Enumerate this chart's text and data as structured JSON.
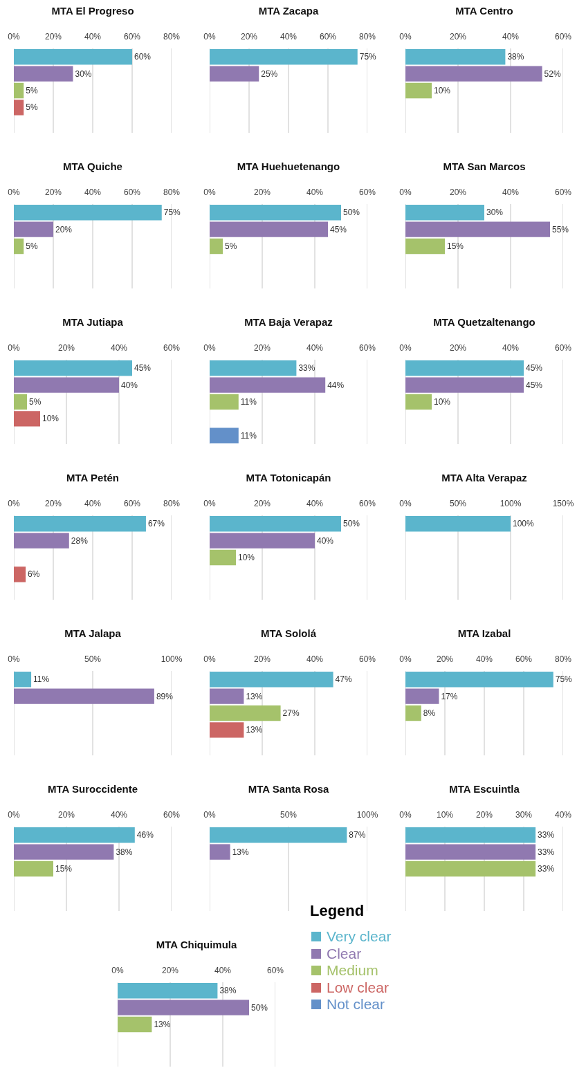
{
  "chart_data": [
    {
      "type": "bar",
      "orientation": "horizontal",
      "title": "MTA El Progreso",
      "categories": [
        null,
        null,
        null,
        null,
        null
      ],
      "values": [
        60,
        30,
        5,
        5,
        null
      ],
      "value_labels": [
        "60%",
        "30%",
        "5%",
        "5%",
        null
      ],
      "colors": [
        "#5bb5cc",
        "#9079b0",
        "#a5c26b",
        "#cc6664",
        "#6390c9"
      ],
      "xlim": [
        0,
        80
      ],
      "xticks": [
        {
          "value": 0,
          "label": "0%"
        },
        {
          "value": 20,
          "label": "20%"
        },
        {
          "value": 40,
          "label": "40%"
        },
        {
          "value": 60,
          "label": "60%"
        },
        {
          "value": 80,
          "label": "80%"
        }
      ],
      "grid": "x",
      "tick_labels": "x"
    },
    {
      "type": "bar",
      "orientation": "horizontal",
      "title": "MTA Zacapa",
      "categories": [
        null,
        null,
        null,
        null,
        null
      ],
      "values": [
        75,
        25,
        null,
        null,
        null
      ],
      "value_labels": [
        "75%",
        "25%",
        null,
        null,
        null
      ],
      "colors": [
        "#5bb5cc",
        "#9079b0",
        "#a5c26b",
        "#cc6664",
        "#6390c9"
      ],
      "xlim": [
        0,
        80
      ],
      "xticks": [
        {
          "value": 0,
          "label": "0%"
        },
        {
          "value": 20,
          "label": "20%"
        },
        {
          "value": 40,
          "label": "40%"
        },
        {
          "value": 60,
          "label": "60%"
        },
        {
          "value": 80,
          "label": "80%"
        }
      ],
      "grid": "x",
      "tick_labels": "x"
    },
    {
      "type": "bar",
      "orientation": "horizontal",
      "title": "MTA Centro",
      "categories": [
        null,
        null,
        null,
        null,
        null
      ],
      "values": [
        38,
        52,
        10,
        null,
        null
      ],
      "value_labels": [
        "38%",
        "52%",
        "10%",
        null,
        null
      ],
      "colors": [
        "#5bb5cc",
        "#9079b0",
        "#a5c26b",
        "#cc6664",
        "#6390c9"
      ],
      "xlim": [
        0,
        60
      ],
      "xticks": [
        {
          "value": 0,
          "label": "0%"
        },
        {
          "value": 20,
          "label": "20%"
        },
        {
          "value": 40,
          "label": "40%"
        },
        {
          "value": 60,
          "label": "60%"
        }
      ],
      "grid": "x",
      "tick_labels": "x"
    },
    {
      "type": "bar",
      "orientation": "horizontal",
      "title": "MTA Quiche",
      "categories": [
        null,
        null,
        null,
        null,
        null
      ],
      "values": [
        75,
        20,
        5,
        null,
        null
      ],
      "value_labels": [
        "75%",
        "20%",
        "5%",
        null,
        null
      ],
      "colors": [
        "#5bb5cc",
        "#9079b0",
        "#a5c26b",
        "#cc6664",
        "#6390c9"
      ],
      "xlim": [
        0,
        80
      ],
      "xticks": [
        {
          "value": 0,
          "label": "0%"
        },
        {
          "value": 20,
          "label": "20%"
        },
        {
          "value": 40,
          "label": "40%"
        },
        {
          "value": 60,
          "label": "60%"
        },
        {
          "value": 80,
          "label": "80%"
        }
      ],
      "grid": "x",
      "tick_labels": "x"
    },
    {
      "type": "bar",
      "orientation": "horizontal",
      "title": "MTA Huehuetenango",
      "categories": [
        null,
        null,
        null,
        null,
        null
      ],
      "values": [
        50,
        45,
        5,
        null,
        null
      ],
      "value_labels": [
        "50%",
        "45%",
        "5%",
        null,
        null
      ],
      "colors": [
        "#5bb5cc",
        "#9079b0",
        "#a5c26b",
        "#cc6664",
        "#6390c9"
      ],
      "xlim": [
        0,
        60
      ],
      "xticks": [
        {
          "value": 0,
          "label": "0%"
        },
        {
          "value": 20,
          "label": "20%"
        },
        {
          "value": 40,
          "label": "40%"
        },
        {
          "value": 60,
          "label": "60%"
        }
      ],
      "grid": "x",
      "tick_labels": "x"
    },
    {
      "type": "bar",
      "orientation": "horizontal",
      "title": "MTA San Marcos",
      "categories": [
        null,
        null,
        null,
        null,
        null
      ],
      "values": [
        30,
        55,
        15,
        null,
        null
      ],
      "value_labels": [
        "30%",
        "55%",
        "15%",
        null,
        null
      ],
      "colors": [
        "#5bb5cc",
        "#9079b0",
        "#a5c26b",
        "#cc6664",
        "#6390c9"
      ],
      "xlim": [
        0,
        60
      ],
      "xticks": [
        {
          "value": 0,
          "label": "0%"
        },
        {
          "value": 20,
          "label": "20%"
        },
        {
          "value": 40,
          "label": "40%"
        },
        {
          "value": 60,
          "label": "60%"
        }
      ],
      "grid": "x",
      "tick_labels": "x"
    },
    {
      "type": "bar",
      "orientation": "horizontal",
      "title": "MTA Jutiapa",
      "categories": [
        null,
        null,
        null,
        null,
        null
      ],
      "values": [
        45,
        40,
        5,
        10,
        null
      ],
      "value_labels": [
        "45%",
        "40%",
        "5%",
        "10%",
        null
      ],
      "colors": [
        "#5bb5cc",
        "#9079b0",
        "#a5c26b",
        "#cc6664",
        "#6390c9"
      ],
      "xlim": [
        0,
        60
      ],
      "xticks": [
        {
          "value": 0,
          "label": "0%"
        },
        {
          "value": 20,
          "label": "20%"
        },
        {
          "value": 40,
          "label": "40%"
        },
        {
          "value": 60,
          "label": "60%"
        }
      ],
      "grid": "x",
      "tick_labels": "x"
    },
    {
      "type": "bar",
      "orientation": "horizontal",
      "title": "MTA Baja Verapaz",
      "categories": [
        null,
        null,
        null,
        null,
        null
      ],
      "values": [
        33,
        44,
        11,
        null,
        11
      ],
      "value_labels": [
        "33%",
        "44%",
        "11%",
        null,
        "11%"
      ],
      "colors": [
        "#5bb5cc",
        "#9079b0",
        "#a5c26b",
        "#cc6664",
        "#6390c9"
      ],
      "xlim": [
        0,
        60
      ],
      "xticks": [
        {
          "value": 0,
          "label": "0%"
        },
        {
          "value": 20,
          "label": "20%"
        },
        {
          "value": 40,
          "label": "40%"
        },
        {
          "value": 60,
          "label": "60%"
        }
      ],
      "grid": "x",
      "tick_labels": "x"
    },
    {
      "type": "bar",
      "orientation": "horizontal",
      "title": "MTA Quetzaltenango",
      "categories": [
        null,
        null,
        null,
        null,
        null
      ],
      "values": [
        45,
        45,
        10,
        null,
        null
      ],
      "value_labels": [
        "45%",
        "45%",
        "10%",
        null,
        null
      ],
      "colors": [
        "#5bb5cc",
        "#9079b0",
        "#a5c26b",
        "#cc6664",
        "#6390c9"
      ],
      "xlim": [
        0,
        60
      ],
      "xticks": [
        {
          "value": 0,
          "label": "0%"
        },
        {
          "value": 20,
          "label": "20%"
        },
        {
          "value": 40,
          "label": "40%"
        },
        {
          "value": 60,
          "label": "60%"
        }
      ],
      "grid": "x",
      "tick_labels": "x"
    },
    {
      "type": "bar",
      "orientation": "horizontal",
      "title": "MTA Petén",
      "categories": [
        null,
        null,
        null,
        null,
        null
      ],
      "values": [
        67,
        28,
        null,
        6,
        null
      ],
      "value_labels": [
        "67%",
        "28%",
        null,
        "6%",
        null
      ],
      "colors": [
        "#5bb5cc",
        "#9079b0",
        "#a5c26b",
        "#cc6664",
        "#6390c9"
      ],
      "xlim": [
        0,
        80
      ],
      "xticks": [
        {
          "value": 0,
          "label": "0%"
        },
        {
          "value": 20,
          "label": "20%"
        },
        {
          "value": 40,
          "label": "40%"
        },
        {
          "value": 60,
          "label": "60%"
        },
        {
          "value": 80,
          "label": "80%"
        }
      ],
      "grid": "x",
      "tick_labels": "x"
    },
    {
      "type": "bar",
      "orientation": "horizontal",
      "title": "MTA Totonicapán",
      "categories": [
        null,
        null,
        null,
        null,
        null
      ],
      "values": [
        50,
        40,
        10,
        null,
        null
      ],
      "value_labels": [
        "50%",
        "40%",
        "10%",
        null,
        null
      ],
      "colors": [
        "#5bb5cc",
        "#9079b0",
        "#a5c26b",
        "#cc6664",
        "#6390c9"
      ],
      "xlim": [
        0,
        60
      ],
      "xticks": [
        {
          "value": 0,
          "label": "0%"
        },
        {
          "value": 20,
          "label": "20%"
        },
        {
          "value": 40,
          "label": "40%"
        },
        {
          "value": 60,
          "label": "60%"
        }
      ],
      "grid": "x",
      "tick_labels": "x"
    },
    {
      "type": "bar",
      "orientation": "horizontal",
      "title": "MTA Alta Verapaz",
      "categories": [
        null,
        null,
        null,
        null,
        null
      ],
      "values": [
        100,
        null,
        null,
        null,
        null
      ],
      "value_labels": [
        "100%",
        null,
        null,
        null,
        null
      ],
      "colors": [
        "#5bb5cc",
        "#9079b0",
        "#a5c26b",
        "#cc6664",
        "#6390c9"
      ],
      "xlim": [
        0,
        150
      ],
      "xticks": [
        {
          "value": 0,
          "label": "0%"
        },
        {
          "value": 50,
          "label": "50%"
        },
        {
          "value": 100,
          "label": "100%"
        },
        {
          "value": 150,
          "label": "150%"
        }
      ],
      "grid": "x",
      "tick_labels": "x"
    },
    {
      "type": "bar",
      "orientation": "horizontal",
      "title": "MTA Jalapa",
      "categories": [
        null,
        null,
        null,
        null,
        null
      ],
      "values": [
        11,
        89,
        null,
        null,
        null
      ],
      "value_labels": [
        "11%",
        "89%",
        null,
        null,
        null
      ],
      "colors": [
        "#5bb5cc",
        "#9079b0",
        "#a5c26b",
        "#cc6664",
        "#6390c9"
      ],
      "xlim": [
        0,
        100
      ],
      "xticks": [
        {
          "value": 0,
          "label": "0%"
        },
        {
          "value": 50,
          "label": "50%"
        },
        {
          "value": 100,
          "label": "100%"
        }
      ],
      "grid": "x",
      "tick_labels": "x"
    },
    {
      "type": "bar",
      "orientation": "horizontal",
      "title": "MTA Sololá",
      "categories": [
        null,
        null,
        null,
        null,
        null
      ],
      "values": [
        47,
        13,
        27,
        13,
        null
      ],
      "value_labels": [
        "47%",
        "13%",
        "27%",
        "13%",
        null
      ],
      "colors": [
        "#5bb5cc",
        "#9079b0",
        "#a5c26b",
        "#cc6664",
        "#6390c9"
      ],
      "xlim": [
        0,
        60
      ],
      "xticks": [
        {
          "value": 0,
          "label": "0%"
        },
        {
          "value": 20,
          "label": "20%"
        },
        {
          "value": 40,
          "label": "40%"
        },
        {
          "value": 60,
          "label": "60%"
        }
      ],
      "grid": "x",
      "tick_labels": "x"
    },
    {
      "type": "bar",
      "orientation": "horizontal",
      "title": "MTA Izabal",
      "categories": [
        null,
        null,
        null,
        null,
        null
      ],
      "values": [
        75,
        17,
        8,
        null,
        null
      ],
      "value_labels": [
        "75%",
        "17%",
        "8%",
        null,
        null
      ],
      "colors": [
        "#5bb5cc",
        "#9079b0",
        "#a5c26b",
        "#cc6664",
        "#6390c9"
      ],
      "xlim": [
        0,
        80
      ],
      "xticks": [
        {
          "value": 0,
          "label": "0%"
        },
        {
          "value": 20,
          "label": "20%"
        },
        {
          "value": 40,
          "label": "40%"
        },
        {
          "value": 60,
          "label": "60%"
        },
        {
          "value": 80,
          "label": "80%"
        }
      ],
      "grid": "x",
      "tick_labels": "x"
    },
    {
      "type": "bar",
      "orientation": "horizontal",
      "title": "MTA Suroccidente",
      "categories": [
        null,
        null,
        null,
        null,
        null
      ],
      "values": [
        46,
        38,
        15,
        null,
        null
      ],
      "value_labels": [
        "46%",
        "38%",
        "15%",
        null,
        null
      ],
      "colors": [
        "#5bb5cc",
        "#9079b0",
        "#a5c26b",
        "#cc6664",
        "#6390c9"
      ],
      "xlim": [
        0,
        60
      ],
      "xticks": [
        {
          "value": 0,
          "label": "0%"
        },
        {
          "value": 20,
          "label": "20%"
        },
        {
          "value": 40,
          "label": "40%"
        },
        {
          "value": 60,
          "label": "60%"
        }
      ],
      "grid": "x",
      "tick_labels": "x"
    },
    {
      "type": "bar",
      "orientation": "horizontal",
      "title": "MTA Santa Rosa",
      "categories": [
        null,
        null,
        null,
        null,
        null
      ],
      "values": [
        87,
        13,
        null,
        null,
        null
      ],
      "value_labels": [
        "87%",
        "13%",
        null,
        null,
        null
      ],
      "colors": [
        "#5bb5cc",
        "#9079b0",
        "#a5c26b",
        "#cc6664",
        "#6390c9"
      ],
      "xlim": [
        0,
        100
      ],
      "xticks": [
        {
          "value": 0,
          "label": "0%"
        },
        {
          "value": 50,
          "label": "50%"
        },
        {
          "value": 100,
          "label": "100%"
        }
      ],
      "grid": "x",
      "tick_labels": "x"
    },
    {
      "type": "bar",
      "orientation": "horizontal",
      "title": "MTA Escuintla",
      "categories": [
        null,
        null,
        null,
        null,
        null
      ],
      "values": [
        33,
        33,
        33,
        null,
        null
      ],
      "value_labels": [
        "33%",
        "33%",
        "33%",
        null,
        null
      ],
      "colors": [
        "#5bb5cc",
        "#9079b0",
        "#a5c26b",
        "#cc6664",
        "#6390c9"
      ],
      "xlim": [
        0,
        40
      ],
      "xticks": [
        {
          "value": 0,
          "label": "0%"
        },
        {
          "value": 10,
          "label": "10%"
        },
        {
          "value": 20,
          "label": "20%"
        },
        {
          "value": 30,
          "label": "30%"
        },
        {
          "value": 40,
          "label": "40%"
        }
      ],
      "grid": "x",
      "tick_labels": "x"
    },
    {
      "type": "bar",
      "orientation": "horizontal",
      "title": "MTA Chiquimula",
      "categories": [
        null,
        null,
        null,
        null,
        null
      ],
      "series": [
        {
          "name": "Very clear",
          "color": "#5bb5cc",
          "values": [
            38,
            null,
            null,
            null,
            null
          ],
          "value_labels": [
            "38%",
            null,
            null,
            null,
            null
          ]
        },
        {
          "name": "Clear",
          "color": "#9079b0",
          "values": [
            null,
            50,
            null,
            null,
            null
          ],
          "value_labels": [
            null,
            "50%",
            null,
            null,
            null
          ]
        },
        {
          "name": "Medium",
          "color": "#a5c26b",
          "values": [
            null,
            null,
            13,
            null,
            null
          ],
          "value_labels": [
            null,
            null,
            "13%",
            null,
            null
          ]
        },
        {
          "name": "Low clear",
          "color": "#cc6664",
          "values": [
            null,
            null,
            null,
            null,
            null
          ],
          "value_labels": [
            null,
            null,
            null,
            null,
            null
          ]
        },
        {
          "name": "Not clear",
          "color": "#6390c9",
          "values": [
            null,
            null,
            null,
            null,
            null
          ],
          "value_labels": [
            null,
            null,
            null,
            null,
            null
          ]
        }
      ],
      "legend": "right",
      "legend_title": "Legend",
      "xlim": [
        0,
        60
      ],
      "xticks": [
        {
          "value": 0,
          "label": "0%"
        },
        {
          "value": 20,
          "label": "20%"
        },
        {
          "value": 40,
          "label": "40%"
        },
        {
          "value": 60,
          "label": "60%"
        }
      ],
      "grid": "x",
      "tick_labels": "x"
    }
  ]
}
